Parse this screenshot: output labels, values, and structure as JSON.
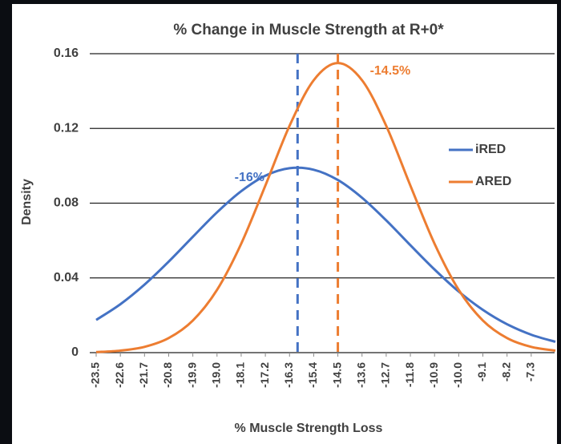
{
  "chart_data": {
    "type": "line",
    "title": "% Change in Muscle Strength at R+0*",
    "xlabel": "% Muscle Strength Loss",
    "ylabel": "Density",
    "x": [
      -23.5,
      -22.6,
      -21.7,
      -20.8,
      -19.9,
      -19.0,
      -18.1,
      -17.2,
      -16.3,
      -15.4,
      -14.5,
      -13.6,
      -12.7,
      -11.8,
      -10.9,
      -10.0,
      -9.1,
      -8.2,
      -7.3,
      -6.4
    ],
    "series": [
      {
        "name": "iRED",
        "color": "#4472c4",
        "values": [
          0.0175,
          0.0259,
          0.0364,
          0.0487,
          0.062,
          0.0751,
          0.0864,
          0.0947,
          0.0987,
          0.0979,
          0.0924,
          0.0829,
          0.0708,
          0.0575,
          0.0445,
          0.0327,
          0.0229,
          0.0152,
          0.0096,
          0.0058
        ]
      },
      {
        "name": "ARED",
        "color": "#ed7d31",
        "values": [
          0.0003,
          0.0011,
          0.0031,
          0.0078,
          0.0172,
          0.0336,
          0.0583,
          0.0894,
          0.1214,
          0.1458,
          0.155,
          0.1458,
          0.1214,
          0.0894,
          0.0583,
          0.0336,
          0.0172,
          0.0078,
          0.0031,
          0.0011
        ]
      }
    ],
    "markers": [
      {
        "x": -16,
        "label": "-16%",
        "color": "#4472c4",
        "peak": 0.0987
      },
      {
        "x": -14.5,
        "label": "-14.5%",
        "color": "#ed7d31",
        "peak": 0.155
      }
    ],
    "xlim": [
      -23.5,
      -6.4
    ],
    "xticks": [
      -23.5,
      -22.6,
      -21.7,
      -20.8,
      -19.9,
      {
        "value": -19,
        "label": "-19.0"
      },
      -18.1,
      -17.2,
      -16.3,
      -15.4,
      -14.5,
      -13.6,
      -12.7,
      -11.8,
      -10.9,
      {
        "value": -10,
        "label": "-10.0"
      },
      -9.1,
      -8.2,
      -7.3
    ],
    "ylim": [
      0,
      0.16
    ],
    "yticks": [
      0,
      0.04,
      0.08,
      0.12,
      0.16
    ],
    "grid": true,
    "legend": "right"
  }
}
